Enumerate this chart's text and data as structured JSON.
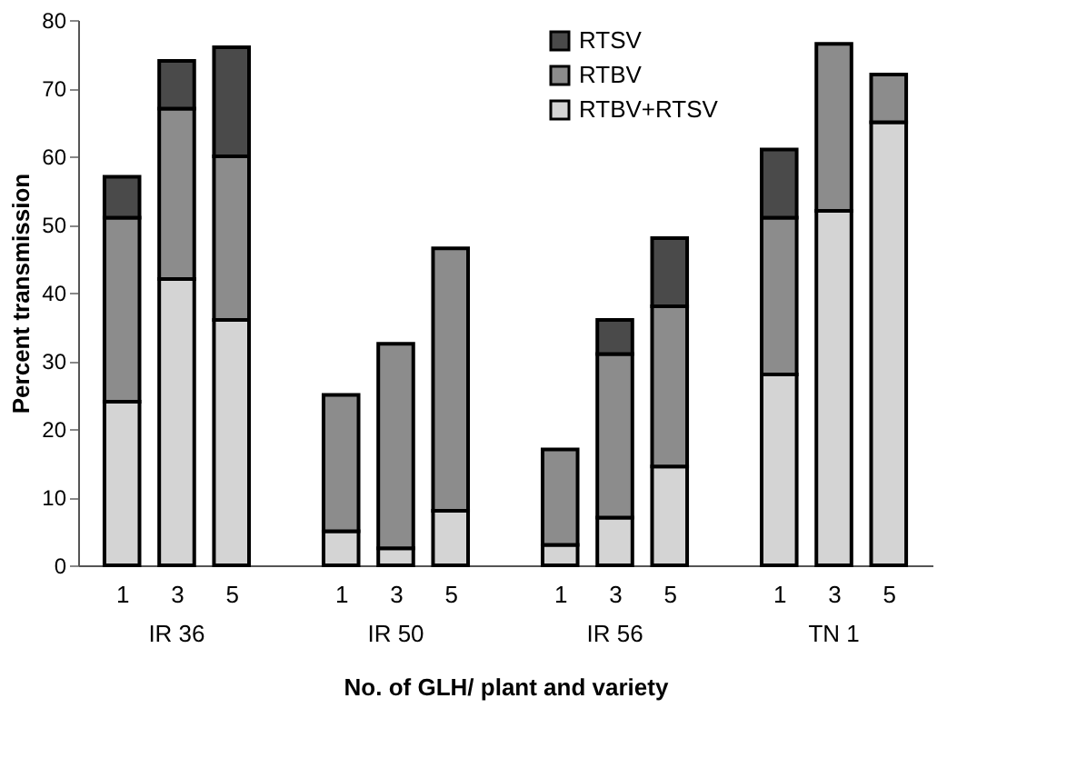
{
  "chart_data": {
    "type": "bar",
    "stacked": true,
    "ylabel": "Percent transmission",
    "xlabel": "No. of GLH/ plant and variety",
    "categories": [
      "1",
      "3",
      "5",
      "1",
      "3",
      "5",
      "1",
      "3",
      "5",
      "1",
      "3",
      "5"
    ],
    "annotations": [
      "IR 36",
      "IR 50",
      "IR 56",
      "TN 1"
    ],
    "series": [
      {
        "name": "RTBV+RTSV",
        "color": "#d4d4d4",
        "values": [
          24,
          42,
          36,
          5,
          2.5,
          8,
          3,
          7,
          14.5,
          28,
          52,
          65
        ]
      },
      {
        "name": "RTBV",
        "color": "#8c8c8c",
        "values": [
          27,
          25,
          24,
          20,
          30,
          38.5,
          14,
          24,
          23.5,
          23,
          24.5,
          7
        ]
      },
      {
        "name": "RTSV",
        "color": "#4a4a4a",
        "values": [
          6,
          7,
          16,
          0,
          0,
          0,
          0,
          5,
          10,
          10,
          0,
          0
        ]
      }
    ],
    "ylim": [
      0,
      80
    ],
    "yticks": [
      0,
      10,
      20,
      30,
      40,
      50,
      60,
      70,
      80
    ],
    "grid": false,
    "legend": "top"
  }
}
